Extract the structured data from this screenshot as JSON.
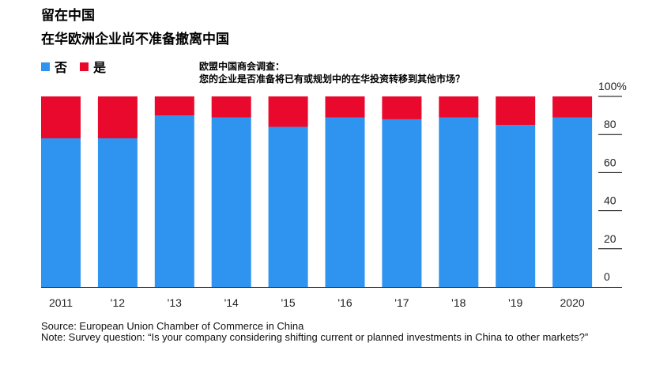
{
  "title_line1": "留在中国",
  "title_line2": "在华欧洲企业尚不准备撤离中国",
  "legend": [
    {
      "label": "否",
      "color": "#2f93f0"
    },
    {
      "label": "是",
      "color": "#e8092d"
    }
  ],
  "annotation_line1": "欧盟中国商会调查：",
  "annotation_line2": "您的企业是否准备将已有或规划中的在华投资转移到其他市场？",
  "source": "Source: European Union Chamber of Commerce in China",
  "note": "Note: Survey question: “Is your company considering shifting current or planned investments in China to other markets?”",
  "chart_data": {
    "type": "bar",
    "stacked": true,
    "categories": [
      "2011",
      "'12",
      "'13",
      "'14",
      "'15",
      "'16",
      "'17",
      "'18",
      "'19",
      "2020"
    ],
    "series": [
      {
        "name": "否",
        "color": "#2f93f0",
        "values": [
          78,
          78,
          90,
          89,
          84,
          89,
          88,
          89,
          85,
          89
        ]
      },
      {
        "name": "是",
        "color": "#e8092d",
        "values": [
          22,
          22,
          10,
          11,
          16,
          11,
          12,
          11,
          15,
          11
        ]
      }
    ],
    "ylim": [
      0,
      100
    ],
    "yticks": [
      "0",
      "20",
      "40",
      "60",
      "80",
      "100%"
    ],
    "ytick_values": [
      0,
      20,
      40,
      60,
      80,
      100
    ],
    "y_axis_position": "right",
    "grid": false
  }
}
